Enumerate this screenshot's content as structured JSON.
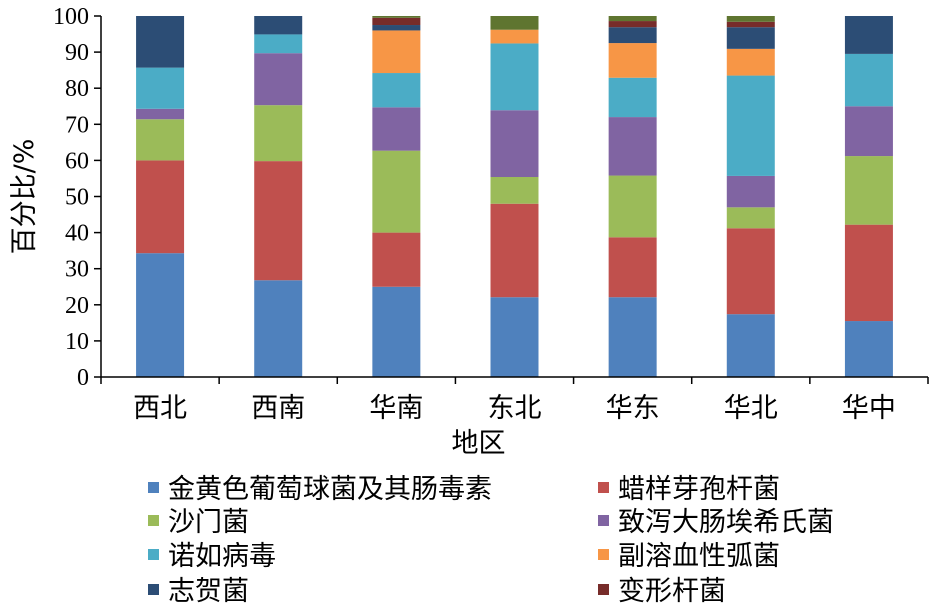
{
  "chart_data": {
    "type": "bar",
    "stacked": true,
    "xlabel": "地区",
    "ylabel": "百分比/%",
    "ylim": [
      0,
      100
    ],
    "yticks": [
      0,
      10,
      20,
      30,
      40,
      50,
      60,
      70,
      80,
      90,
      100
    ],
    "grid": false,
    "legend_position": "bottom",
    "categories": [
      "西北",
      "西南",
      "华南",
      "东北",
      "华东",
      "华北",
      "华中"
    ],
    "series": [
      {
        "name": "金黄色葡萄球菌及其肠毒素",
        "color": "#4F81BD",
        "values": [
          34.3,
          26.8,
          25.0,
          22.1,
          22.1,
          17.4,
          15.5
        ]
      },
      {
        "name": "蜡样芽孢杆菌",
        "color": "#C0504D",
        "values": [
          25.7,
          33.0,
          15.0,
          25.9,
          16.6,
          23.8,
          26.7
        ]
      },
      {
        "name": "沙门菌",
        "color": "#9BBB59",
        "values": [
          11.4,
          15.5,
          22.7,
          7.4,
          17.1,
          5.8,
          19.0
        ]
      },
      {
        "name": "致泻大肠埃希氏菌",
        "color": "#8064A2",
        "values": [
          2.9,
          14.4,
          12.0,
          18.5,
          16.2,
          8.7,
          13.8
        ]
      },
      {
        "name": "诺如病毒",
        "color": "#4BACC6",
        "values": [
          11.4,
          5.2,
          9.5,
          18.5,
          10.9,
          27.8,
          14.5
        ]
      },
      {
        "name": "副溶血性弧菌",
        "color": "#F79646",
        "values": [
          0,
          0,
          11.8,
          3.8,
          9.6,
          7.4,
          0
        ]
      },
      {
        "name": "志贺菌",
        "color": "#2C4D75",
        "values": [
          14.3,
          5.1,
          1.5,
          0,
          4.4,
          6.0,
          10.5
        ]
      },
      {
        "name": "变形杆菌",
        "color": "#772C2A",
        "values": [
          0,
          0,
          2.0,
          0,
          1.7,
          1.5,
          0
        ]
      },
      {
        "name": "",
        "color": "#5F7530",
        "values": [
          0,
          0,
          0.5,
          3.8,
          1.4,
          1.6,
          0
        ]
      }
    ]
  }
}
